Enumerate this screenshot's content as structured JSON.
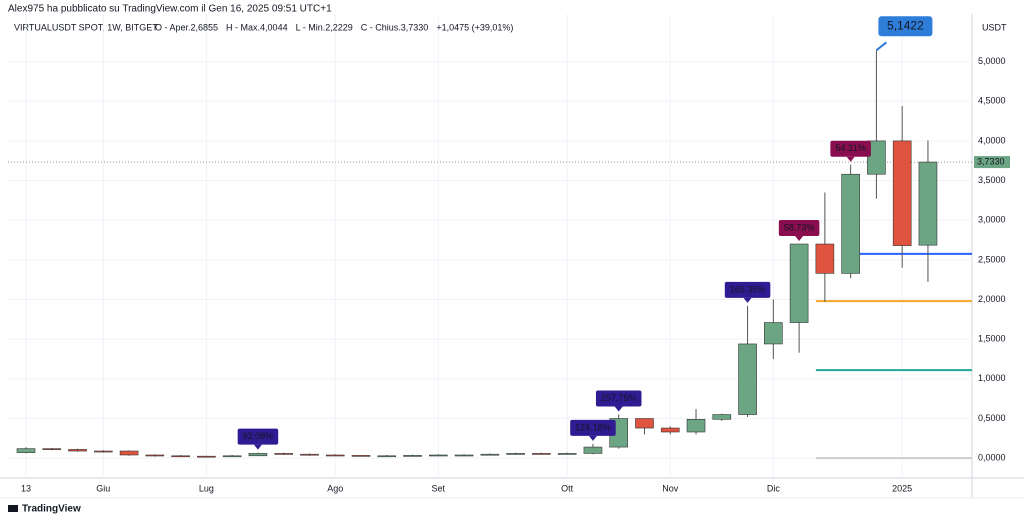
{
  "header": "Alex975 ha pubblicato su TradingView.com il Gen 16, 2025 09:51 UTC+1",
  "footer": "TradingView",
  "chart_data": {
    "type": "candlestick",
    "title": "VIRTUALUSDT SPOT, 1W, BITGET",
    "legend_items": [
      "O - Aper.2,6855",
      "H - Max.4,0044",
      "L - Min.2,2229",
      "C - Chius.3,7330",
      "+1,0475 (+39,01%)"
    ],
    "y_axis_label": "USDT",
    "categories": [
      "13",
      null,
      null,
      "Giu",
      null,
      null,
      null,
      "Lug",
      null,
      null,
      null,
      null,
      "Ago",
      null,
      null,
      null,
      "Set",
      null,
      null,
      null,
      null,
      "Ott",
      null,
      null,
      null,
      "Nov",
      null,
      null,
      null,
      "Dic",
      null,
      null,
      null,
      null,
      "2025",
      null
    ],
    "open": [
      0.07,
      0.12,
      0.11,
      0.09,
      0.09,
      0.04,
      0.03,
      0.025,
      0.02,
      0.03,
      0.06,
      0.05,
      0.04,
      0.035,
      0.03,
      0.03,
      0.035,
      0.04,
      0.04,
      0.05,
      0.06,
      0.055,
      0.06,
      0.14,
      0.5,
      0.38,
      0.33,
      0.49,
      0.55,
      1.44,
      1.71,
      2.7,
      2.33,
      3.58,
      4.0,
      2.6855
    ],
    "high": [
      0.14,
      0.13,
      0.12,
      0.1,
      0.1,
      0.05,
      0.04,
      0.03,
      0.04,
      0.07,
      0.07,
      0.06,
      0.05,
      0.04,
      0.04,
      0.045,
      0.05,
      0.05,
      0.06,
      0.07,
      0.07,
      0.07,
      0.18,
      0.55,
      0.5,
      0.4,
      0.62,
      0.56,
      1.92,
      2.0,
      2.7,
      3.35,
      3.7,
      5.1422,
      4.44,
      4.0044
    ],
    "low": [
      0.06,
      0.1,
      0.08,
      0.07,
      0.03,
      0.02,
      0.02,
      0.015,
      0.015,
      0.025,
      0.04,
      0.03,
      0.03,
      0.025,
      0.025,
      0.025,
      0.03,
      0.03,
      0.035,
      0.045,
      0.05,
      0.05,
      0.05,
      0.12,
      0.3,
      0.3,
      0.3,
      0.47,
      0.52,
      1.25,
      1.33,
      1.97,
      2.27,
      3.27,
      2.4,
      2.2229
    ],
    "close": [
      0.12,
      0.11,
      0.09,
      0.08,
      0.04,
      0.03,
      0.025,
      0.02,
      0.03,
      0.06,
      0.05,
      0.04,
      0.035,
      0.03,
      0.03,
      0.035,
      0.04,
      0.04,
      0.05,
      0.06,
      0.055,
      0.06,
      0.14,
      0.5,
      0.38,
      0.33,
      0.49,
      0.55,
      1.44,
      1.71,
      2.7,
      2.33,
      3.58,
      4.0,
      2.68,
      3.733
    ],
    "up_color": "#6ba583",
    "down_color": "#e0533f",
    "ylim": [
      -0.25,
      5.6
    ],
    "yticks": [
      {
        "value": 0,
        "label": "0,0000"
      },
      {
        "value": 0.5,
        "label": "0,5000"
      },
      {
        "value": 1,
        "label": "1,0000"
      },
      {
        "value": 1.5,
        "label": "1,5000"
      },
      {
        "value": 2,
        "label": "2,0000"
      },
      {
        "value": 2.5,
        "label": "2,5000"
      },
      {
        "value": 3,
        "label": "3,0000"
      },
      {
        "value": 3.5,
        "label": "3,5000"
      },
      {
        "value": 4,
        "label": "4,0000"
      },
      {
        "value": 4.5,
        "label": "4,5000"
      },
      {
        "value": 5,
        "label": "5,0000"
      }
    ],
    "grid": true,
    "annotations": [
      {
        "text": "92.08%",
        "x": 9,
        "color": "#311b92"
      },
      {
        "text": "124.18%",
        "x": 22,
        "color": "#311b92"
      },
      {
        "text": "257.75%",
        "x": 23,
        "color": "#311b92"
      },
      {
        "text": "165.35%",
        "x": 28,
        "color": "#311b92"
      },
      {
        "text": "58.73%",
        "x": 30,
        "color": "#880e4f"
      },
      {
        "text": "54.31%",
        "x": 32,
        "color": "#880e4f"
      }
    ],
    "max_marker": {
      "x": 33,
      "value": 5.1422,
      "label": "5,1422",
      "color": "#2e7dd9"
    },
    "price_marker": {
      "value": 3.733,
      "label": "3,7330",
      "color": "#6ba583"
    },
    "levels": [
      {
        "value": 2.576,
        "start": 32,
        "color": "#2962ff"
      },
      {
        "value": 1.98,
        "start": 31,
        "color": "#f5a623"
      },
      {
        "value": 1.11,
        "start": 31,
        "color": "#26a69a"
      },
      {
        "value": 0,
        "start": 31,
        "color": "#cccccc"
      }
    ]
  }
}
